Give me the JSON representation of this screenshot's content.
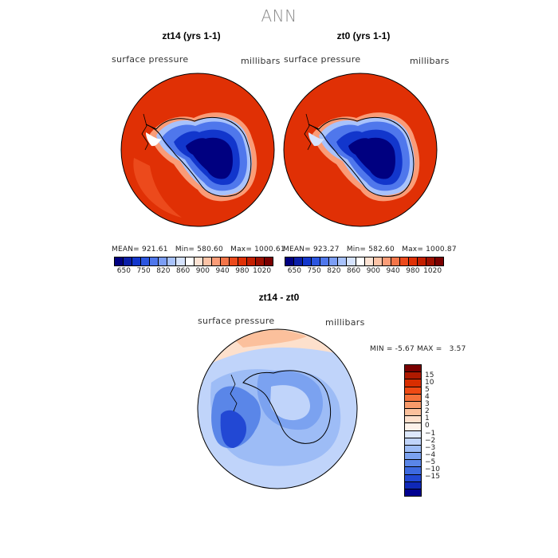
{
  "main_title": "ANN",
  "panels": [
    {
      "title": "zt14 (yrs 1-1)",
      "variable": "surface pressure",
      "units": "millibars",
      "mean_label": "MEAN=",
      "mean": "921.61",
      "min_label": "Min=",
      "min": "580.60",
      "max_label": "Max=",
      "max": "1000.61"
    },
    {
      "title": "zt0 (yrs 1-1)",
      "variable": "surface pressure",
      "units": "millibars",
      "mean_label": "MEAN=",
      "mean": "923.27",
      "min_label": "Min=",
      "min": "582.60",
      "max_label": "Max=",
      "max": "1000.87"
    }
  ],
  "colorbar_top": {
    "colors": [
      "#000080",
      "#0a1ea8",
      "#1236cc",
      "#2b55e0",
      "#4f77ec",
      "#7c9ef5",
      "#a8c2fb",
      "#d6e3fd",
      "#ffffff",
      "#fde3d4",
      "#fcc3a6",
      "#fa9c77",
      "#f47548",
      "#ec4a1c",
      "#e03005",
      "#c41f00",
      "#9e0f00",
      "#7a0000"
    ],
    "ticks": [
      "650",
      "750",
      "820",
      "860",
      "900",
      "940",
      "980",
      "1020"
    ]
  },
  "diff": {
    "title": "zt14 - zt0",
    "variable": "surface pressure",
    "units": "millibars",
    "min_label": "MIN =",
    "min": "-5.67",
    "max_label": "MAX =",
    "max": "3.57"
  },
  "colorbar_diff": {
    "colors": [
      "#7a0000",
      "#b01a00",
      "#d82e00",
      "#ef4a14",
      "#f5713a",
      "#f89a6a",
      "#fbc09c",
      "#fde0cc",
      "#fdf2ea",
      "#dde8fc",
      "#c0d4fa",
      "#9dbcf6",
      "#7ba2f0",
      "#5a86e8",
      "#3d6ae0",
      "#2248d4",
      "#0f28b8",
      "#000090"
    ],
    "ticks": [
      "15",
      "10",
      "5",
      "4",
      "3",
      "2",
      "1",
      "0",
      "−1",
      "−2",
      "−3",
      "−4",
      "−5",
      "−10",
      "−15"
    ]
  }
}
